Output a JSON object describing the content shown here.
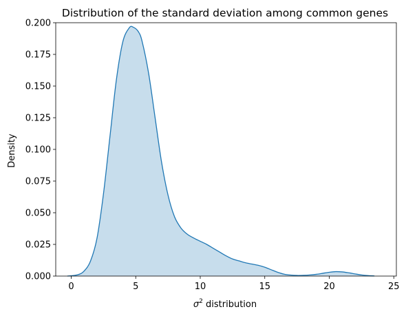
{
  "chart_data": {
    "type": "area",
    "title": "Distribution of the standard deviation among common genes",
    "xlabel_symbol": "σ",
    "xlabel_superscript": "2",
    "xlabel_text": " distribution",
    "ylabel": "Density",
    "xlim": [
      -1.2,
      25.2
    ],
    "ylim": [
      0,
      0.2
    ],
    "xticks": [
      0,
      5,
      10,
      15,
      20,
      25
    ],
    "yticks": [
      0.0,
      0.025,
      0.05,
      0.075,
      0.1,
      0.125,
      0.15,
      0.175,
      0.2
    ],
    "ytick_labels": [
      "0.000",
      "0.025",
      "0.050",
      "0.075",
      "0.100",
      "0.125",
      "0.150",
      "0.175",
      "0.200"
    ],
    "line_color": "#1f77b4",
    "fill_color": "#1f77b4",
    "fill_opacity": 0.25,
    "grid": false,
    "series": [
      {
        "x": [
          -0.3,
          0.5,
          1.0,
          1.5,
          2.0,
          2.5,
          3.0,
          3.5,
          4.0,
          4.5,
          4.8,
          5.2,
          5.5,
          6.0,
          6.5,
          7.0,
          7.5,
          8.0,
          8.5,
          9.0,
          9.5,
          10.0,
          10.5,
          11.0,
          11.5,
          12.0,
          12.5,
          13.0,
          13.5,
          14.0,
          14.5,
          15.0,
          15.5,
          16.0,
          16.5,
          17.0,
          17.5,
          18.0,
          18.5,
          19.0,
          19.5,
          20.0,
          20.5,
          21.0,
          21.5,
          22.0,
          22.5,
          23.0,
          23.5
        ],
        "y": [
          0.0,
          0.001,
          0.004,
          0.012,
          0.03,
          0.065,
          0.11,
          0.155,
          0.185,
          0.196,
          0.1965,
          0.193,
          0.185,
          0.16,
          0.125,
          0.09,
          0.064,
          0.047,
          0.038,
          0.033,
          0.03,
          0.0275,
          0.025,
          0.022,
          0.019,
          0.016,
          0.0135,
          0.012,
          0.0105,
          0.0095,
          0.0085,
          0.007,
          0.005,
          0.003,
          0.0015,
          0.0008,
          0.0005,
          0.0006,
          0.0009,
          0.0014,
          0.0022,
          0.003,
          0.0035,
          0.0033,
          0.0026,
          0.0017,
          0.0009,
          0.0004,
          0.0001
        ]
      }
    ]
  }
}
